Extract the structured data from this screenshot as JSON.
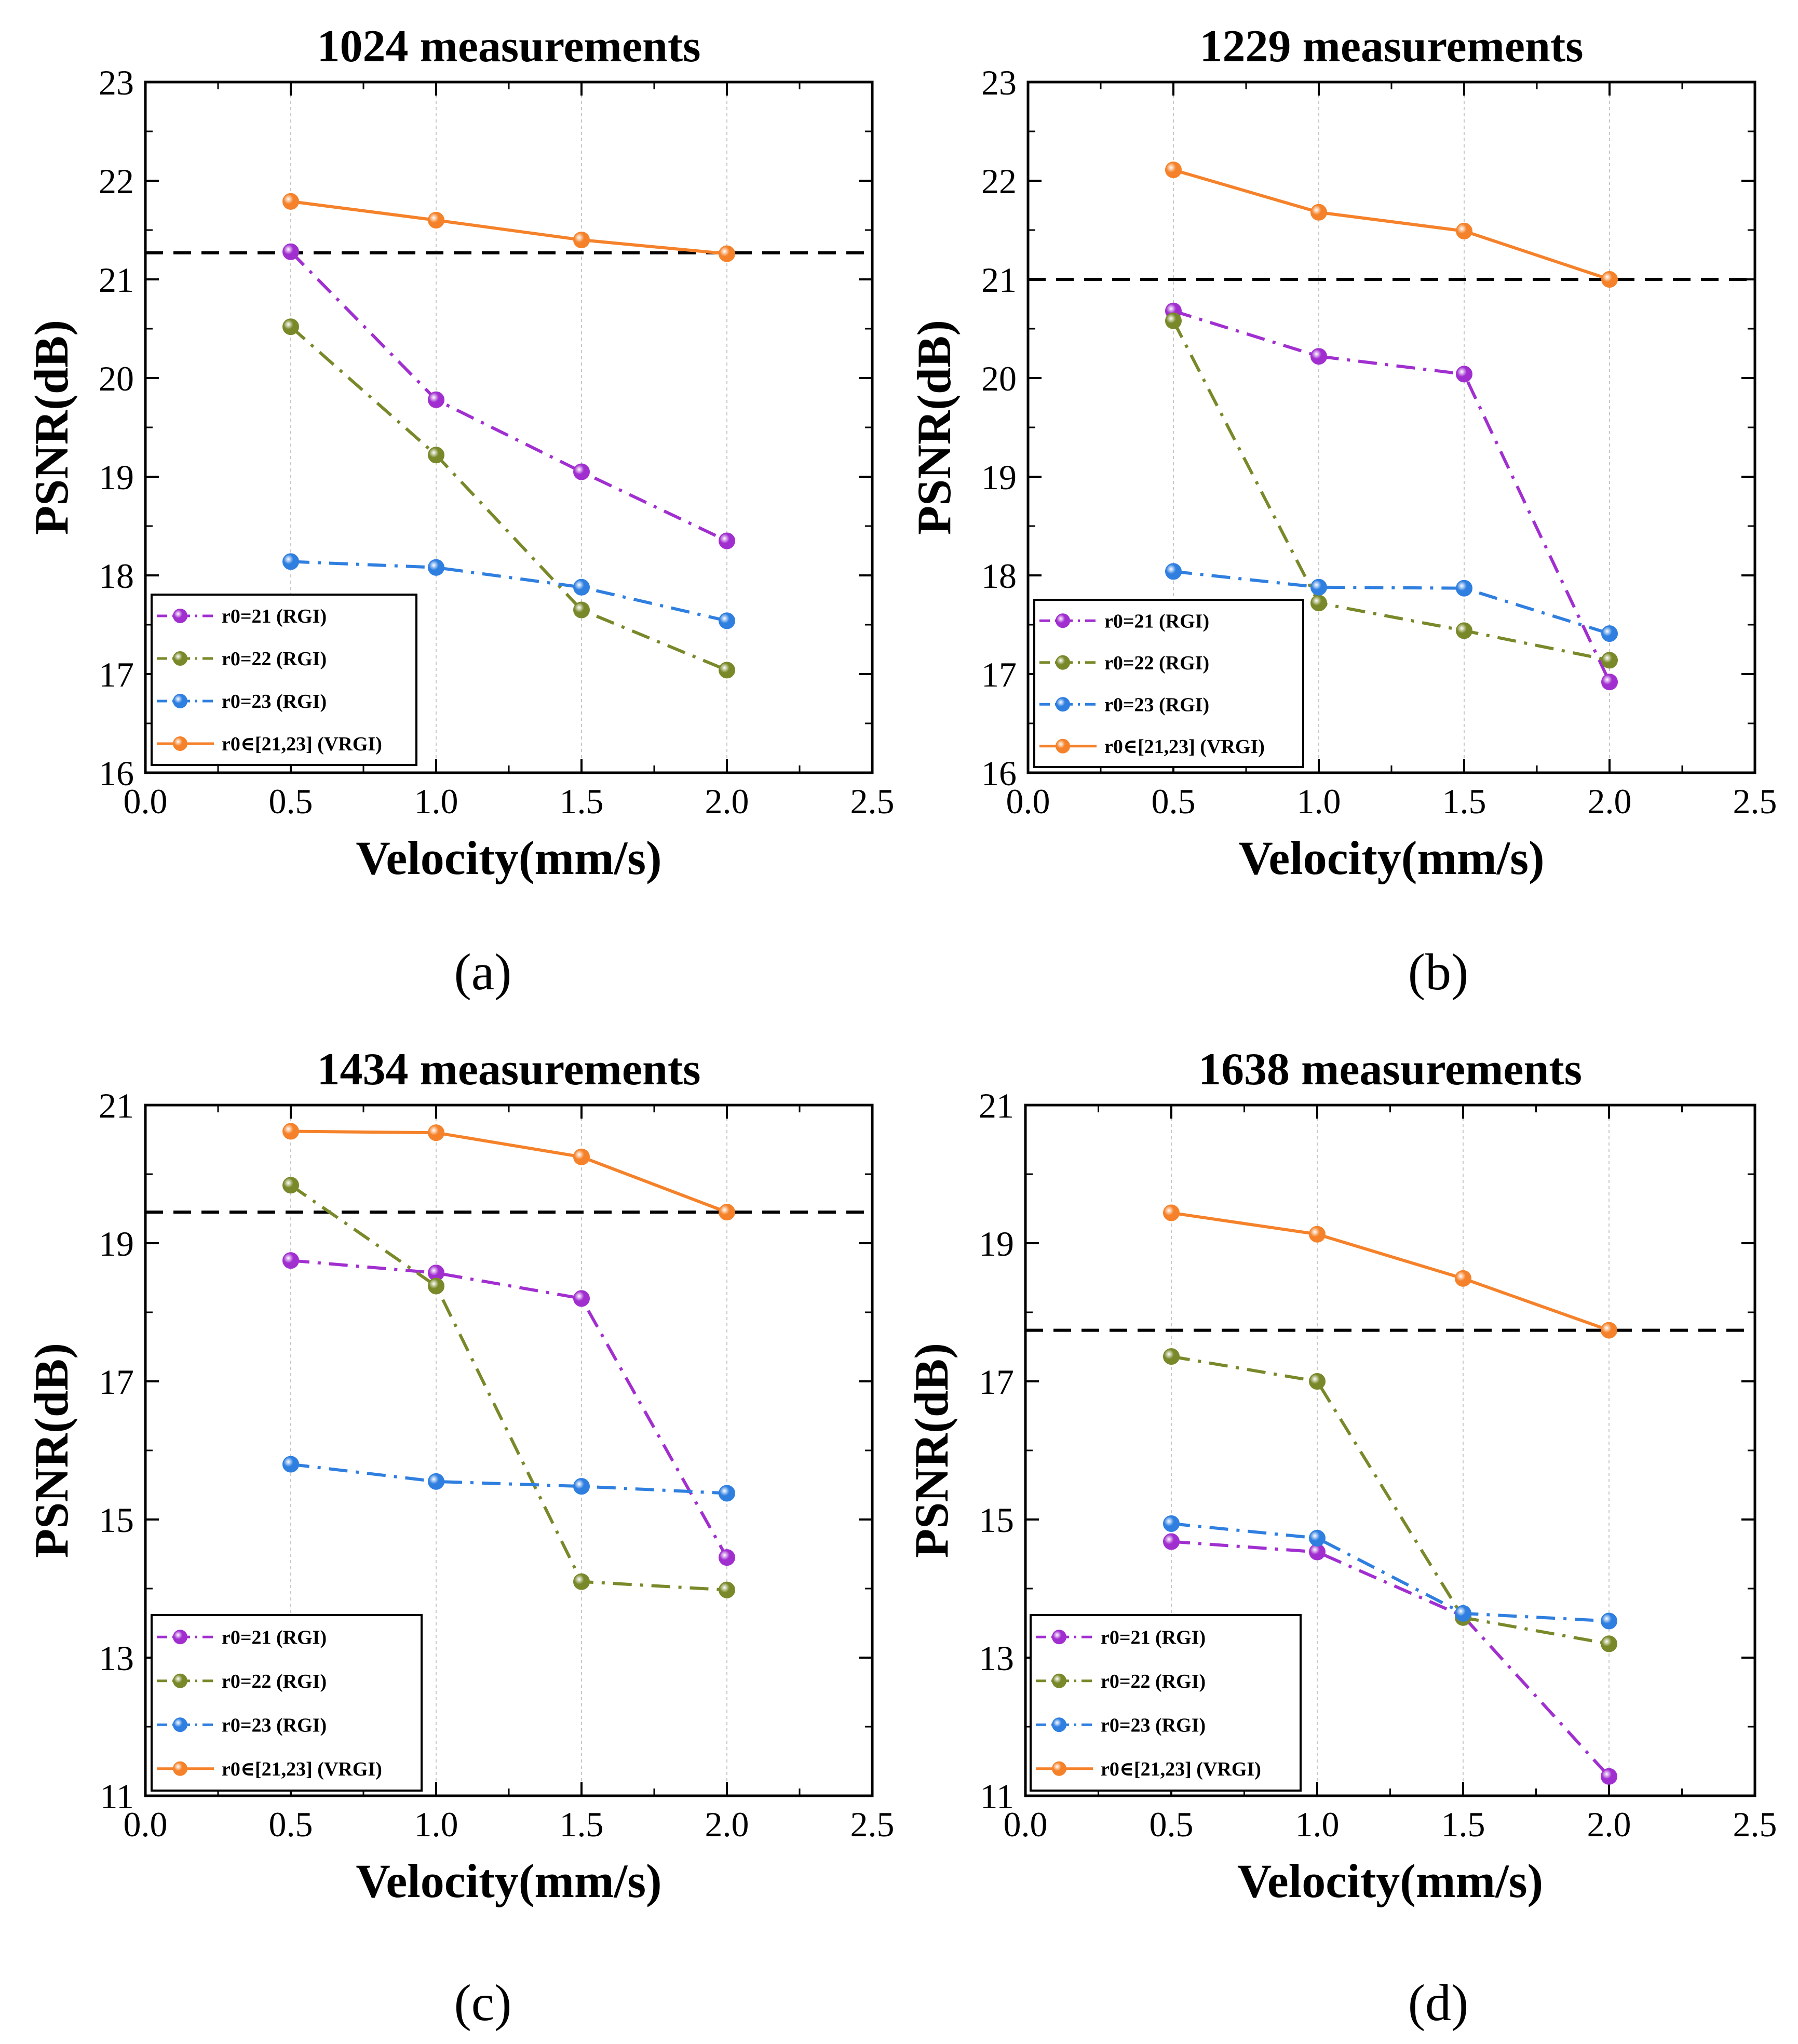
{
  "chart_data": [
    {
      "type": "line",
      "caption": "(a)",
      "title": "1024 measurements",
      "xlabel": "Velocity(mm/s)",
      "ylabel": "PSNR(dB)",
      "xlim": [
        0.0,
        2.5
      ],
      "ylim": [
        16,
        23
      ],
      "xticks": [
        "0.0",
        "0.5",
        "1.0",
        "1.5",
        "2.0",
        "2.5"
      ],
      "yticks": [
        "16",
        "17",
        "18",
        "19",
        "20",
        "21",
        "22",
        "23"
      ],
      "x": [
        0.5,
        1.0,
        1.5,
        2.0
      ],
      "reference_line": 21.27,
      "series": [
        {
          "name": "r0=21 (RGI)",
          "color": "#a12fd0",
          "dash": "dashdot",
          "values": [
            21.28,
            19.78,
            19.05,
            18.35
          ]
        },
        {
          "name": "r0=22 (RGI)",
          "color": "#79892a",
          "dash": "dashdot",
          "values": [
            20.52,
            19.22,
            17.65,
            17.04
          ]
        },
        {
          "name": "r0=23 (RGI)",
          "color": "#2f7fe0",
          "dash": "dashdot",
          "values": [
            18.14,
            18.08,
            17.88,
            17.54
          ]
        },
        {
          "name": "r0∈[21,23] (VRGI)",
          "color": "#f5822a",
          "dash": "solid",
          "values": [
            21.79,
            21.6,
            21.4,
            21.26
          ]
        }
      ]
    },
    {
      "type": "line",
      "caption": "(b)",
      "title": "1229 measurements",
      "xlabel": "Velocity(mm/s)",
      "ylabel": "PSNR(dB)",
      "xlim": [
        0.0,
        2.5
      ],
      "ylim": [
        16,
        23
      ],
      "xticks": [
        "0.0",
        "0.5",
        "1.0",
        "1.5",
        "2.0",
        "2.5"
      ],
      "yticks": [
        "16",
        "17",
        "18",
        "19",
        "20",
        "21",
        "22",
        "23"
      ],
      "x": [
        0.5,
        1.0,
        1.5,
        2.0
      ],
      "reference_line": 21.0,
      "series": [
        {
          "name": "r0=21 (RGI)",
          "color": "#a12fd0",
          "dash": "dashdot",
          "values": [
            20.68,
            20.22,
            20.04,
            16.92
          ]
        },
        {
          "name": "r0=22 (RGI)",
          "color": "#79892a",
          "dash": "dashdot",
          "values": [
            20.58,
            17.72,
            17.44,
            17.14
          ]
        },
        {
          "name": "r0=23 (RGI)",
          "color": "#2f7fe0",
          "dash": "dashdot",
          "values": [
            18.04,
            17.88,
            17.87,
            17.41
          ]
        },
        {
          "name": "r0∈[21,23] (VRGI)",
          "color": "#f5822a",
          "dash": "solid",
          "values": [
            22.11,
            21.68,
            21.49,
            21.0
          ]
        }
      ]
    },
    {
      "type": "line",
      "caption": "(c)",
      "title": "1434 measurements",
      "xlabel": "Velocity(mm/s)",
      "ylabel": "PSNR(dB)",
      "xlim": [
        0.0,
        2.5
      ],
      "ylim": [
        11,
        21
      ],
      "xticks": [
        "0.0",
        "0.5",
        "1.0",
        "1.5",
        "2.0",
        "2.5"
      ],
      "yticks": [
        "11",
        "13",
        "15",
        "17",
        "19",
        "21"
      ],
      "x": [
        0.5,
        1.0,
        1.5,
        2.0
      ],
      "reference_line": 19.45,
      "series": [
        {
          "name": "r0=21 (RGI)",
          "color": "#a12fd0",
          "dash": "dashdot",
          "values": [
            18.75,
            18.57,
            18.2,
            14.45
          ]
        },
        {
          "name": "r0=22 (RGI)",
          "color": "#79892a",
          "dash": "dashdot",
          "values": [
            19.84,
            18.38,
            14.1,
            13.98
          ]
        },
        {
          "name": "r0=23 (RGI)",
          "color": "#2f7fe0",
          "dash": "dashdot",
          "values": [
            15.8,
            15.55,
            15.48,
            15.38
          ]
        },
        {
          "name": "r0∈[21,23] (VRGI)",
          "color": "#f5822a",
          "dash": "solid",
          "values": [
            20.62,
            20.6,
            20.25,
            19.45
          ]
        }
      ]
    },
    {
      "type": "line",
      "caption": "(d)",
      "title": "1638 measurements",
      "xlabel": "Velocity(mm/s)",
      "ylabel": "PSNR(dB)",
      "xlim": [
        0.0,
        2.5
      ],
      "ylim": [
        11,
        21
      ],
      "xticks": [
        "0.0",
        "0.5",
        "1.0",
        "1.5",
        "2.0",
        "2.5"
      ],
      "yticks": [
        "11",
        "13",
        "15",
        "17",
        "19",
        "21"
      ],
      "x": [
        0.5,
        1.0,
        1.5,
        2.0
      ],
      "reference_line": 17.74,
      "series": [
        {
          "name": "r0=21 (RGI)",
          "color": "#a12fd0",
          "dash": "dashdot",
          "values": [
            14.68,
            14.53,
            13.6,
            11.28
          ]
        },
        {
          "name": "r0=22 (RGI)",
          "color": "#79892a",
          "dash": "dashdot",
          "values": [
            17.36,
            17.0,
            13.58,
            13.2
          ]
        },
        {
          "name": "r0=23 (RGI)",
          "color": "#2f7fe0",
          "dash": "dashdot",
          "values": [
            14.94,
            14.73,
            13.64,
            13.53
          ]
        },
        {
          "name": "r0∈[21,23] (VRGI)",
          "color": "#f5822a",
          "dash": "solid",
          "values": [
            19.44,
            19.13,
            18.49,
            17.74
          ]
        }
      ]
    }
  ]
}
